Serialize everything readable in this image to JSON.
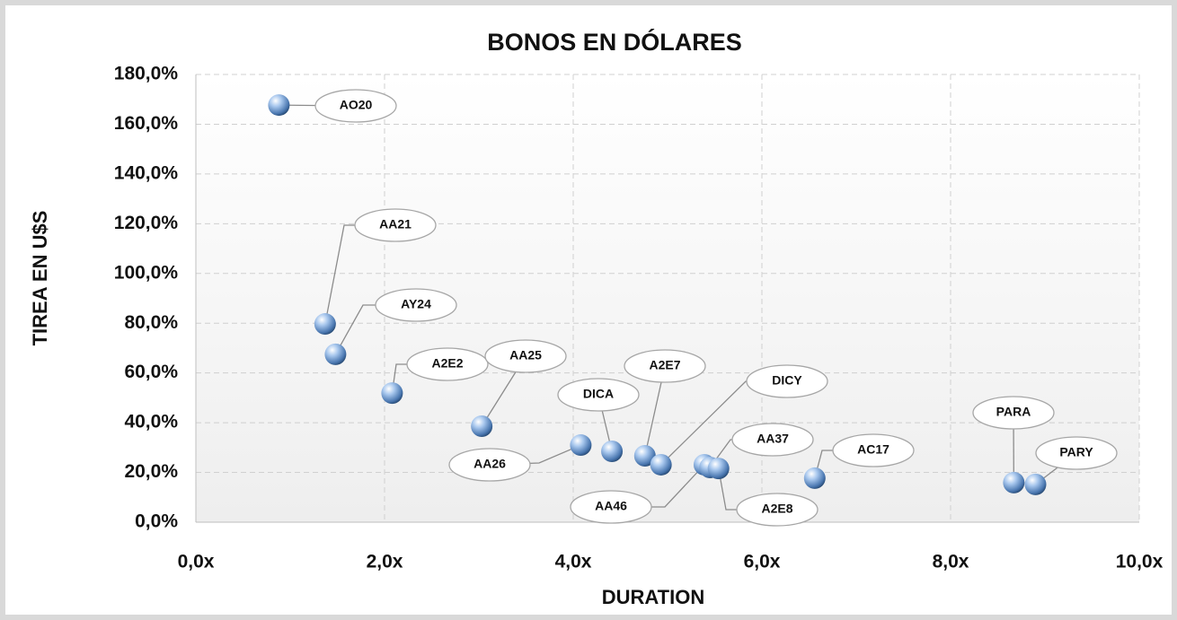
{
  "chart_data": {
    "type": "scatter",
    "title": "BONOS EN DÓLARES",
    "xlabel": "DURATION",
    "ylabel": "TIREA EN U$S",
    "labels": [
      "AO20",
      "AA21",
      "AY24",
      "A2E2",
      "AA25",
      "AA26",
      "DICA",
      "A2E7",
      "DICY",
      "AA46",
      "AA37",
      "A2E8",
      "AC17",
      "PARA",
      "PARY"
    ],
    "x": [
      0.88,
      1.37,
      1.48,
      2.08,
      3.03,
      4.08,
      4.41,
      4.76,
      4.93,
      5.39,
      5.45,
      5.54,
      6.56,
      8.67,
      8.9
    ],
    "values": [
      167.7,
      79.7,
      67.5,
      51.9,
      38.6,
      31.0,
      28.5,
      26.7,
      23.1,
      23.1,
      22.0,
      21.6,
      17.7,
      15.9,
      15.2
    ],
    "color": "#6f9fd8",
    "xlim": [
      0,
      10
    ],
    "xticks": [
      {
        "value": 0,
        "label": "0,0x"
      },
      {
        "value": 2,
        "label": "2,0x"
      },
      {
        "value": 4,
        "label": "4,0x"
      },
      {
        "value": 6,
        "label": "6,0x"
      },
      {
        "value": 8,
        "label": "8,0x"
      },
      {
        "value": 10,
        "label": "10,0x"
      }
    ],
    "ylim": [
      0,
      180
    ],
    "yticks": [
      {
        "value": 0,
        "label": "0,0%"
      },
      {
        "value": 20,
        "label": "20,0%"
      },
      {
        "value": 40,
        "label": "40,0%"
      },
      {
        "value": 60,
        "label": "60,0%"
      },
      {
        "value": 80,
        "label": "80,0%"
      },
      {
        "value": 100,
        "label": "100,0%"
      },
      {
        "value": 120,
        "label": "120,0%"
      },
      {
        "value": 140,
        "label": "140,0%"
      },
      {
        "value": 160,
        "label": "160,0%"
      },
      {
        "value": 180,
        "label": "180,0%"
      }
    ],
    "grid": true
  }
}
